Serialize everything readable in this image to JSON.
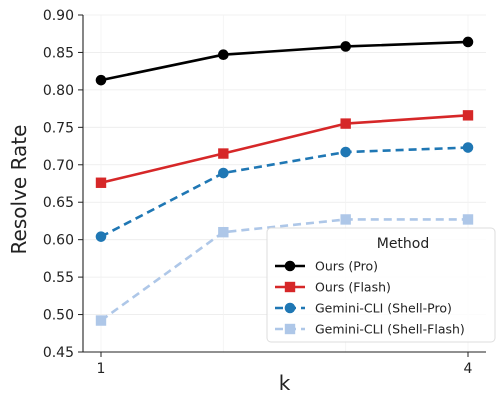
{
  "chart_data": {
    "type": "line",
    "title": "",
    "xlabel": "k",
    "ylabel": "Resolve Rate",
    "x": [
      1,
      2,
      3,
      4
    ],
    "x_tick_labels": [
      "1",
      "4"
    ],
    "x_tick_values": [
      1,
      4
    ],
    "ylim": [
      0.45,
      0.9
    ],
    "y_ticks": [
      0.45,
      0.5,
      0.55,
      0.6,
      0.65,
      0.7,
      0.75,
      0.8,
      0.85,
      0.9
    ],
    "y_tick_labels": [
      "0.45",
      "0.50",
      "0.55",
      "0.60",
      "0.65",
      "0.70",
      "0.75",
      "0.80",
      "0.85",
      "0.90"
    ],
    "grid": true,
    "legend": {
      "title": "Method",
      "placement": "bottom-right"
    },
    "series": [
      {
        "name": "Ours (Pro)",
        "values": [
          0.813,
          0.847,
          0.858,
          0.864
        ],
        "color": "#000000",
        "line_style": "solid",
        "marker": "circle"
      },
      {
        "name": "Ours (Flash)",
        "values": [
          0.676,
          0.715,
          0.755,
          0.766
        ],
        "color": "#d62728",
        "line_style": "solid",
        "marker": "square"
      },
      {
        "name": "Gemini-CLI (Shell-Pro)",
        "values": [
          0.604,
          0.689,
          0.717,
          0.723
        ],
        "color": "#1f77b4",
        "line_style": "dashed",
        "marker": "circle"
      },
      {
        "name": "Gemini-CLI (Shell-Flash)",
        "values": [
          0.492,
          0.61,
          0.627,
          0.627
        ],
        "color": "#aec7e8",
        "line_style": "dashed",
        "marker": "square"
      }
    ]
  }
}
